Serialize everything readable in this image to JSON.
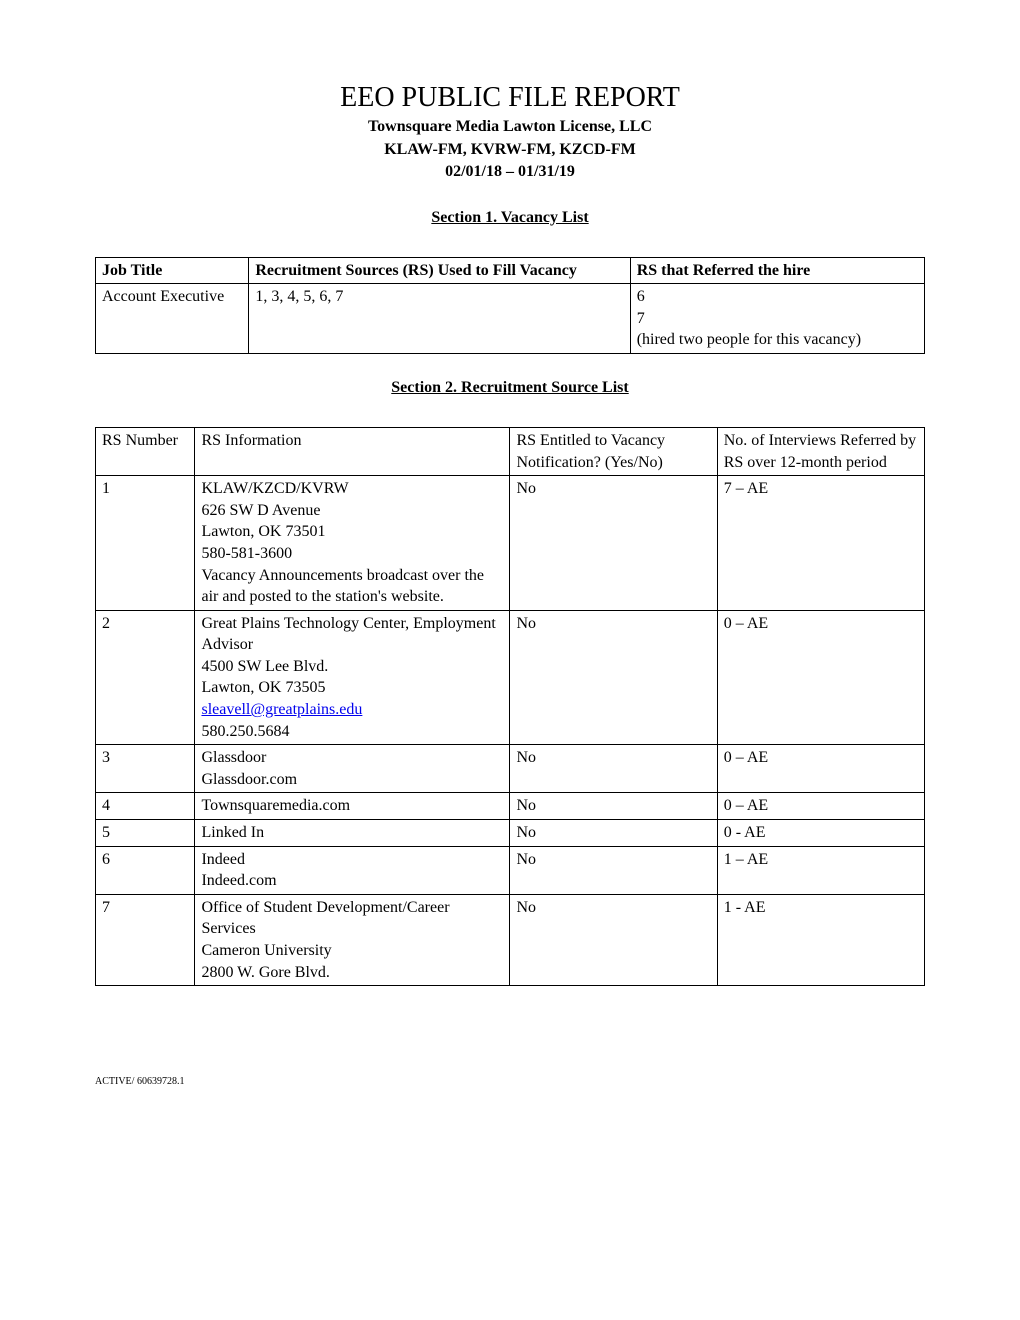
{
  "header": {
    "title": "EEO PUBLIC FILE REPORT",
    "company": "Townsquare Media Lawton License, LLC",
    "stations": "KLAW-FM, KVRW-FM, KZCD-FM",
    "date_range": "02/01/18 – 01/31/19"
  },
  "section1": {
    "heading": "Section 1. Vacancy List",
    "columns": {
      "job_title": "Job Title",
      "sources": "Recruitment Sources (RS) Used to Fill Vacancy",
      "referred": "RS that Referred the hire"
    },
    "rows": [
      {
        "job_title": "Account Executive",
        "sources": "1, 3, 4, 5, 6, 7",
        "referred_line1": "6",
        "referred_line2": "7",
        "referred_line3": "(hired two people for this vacancy)"
      }
    ]
  },
  "section2": {
    "heading": "Section 2. Recruitment Source List",
    "columns": {
      "rs_number": "RS Number",
      "rs_info": "RS Information",
      "entitled": "RS Entitled to Vacancy Notification? (Yes/No)",
      "interviews": "No. of Interviews Referred by RS over 12-month period"
    },
    "rows": [
      {
        "num": "1",
        "info_l1": "KLAW/KZCD/KVRW",
        "info_l2": "626 SW D Avenue",
        "info_l3": "Lawton, OK  73501",
        "info_l4": "580-581-3600",
        "info_l5": "Vacancy Announcements broadcast over the air and posted to the station's website.",
        "entitled": "No",
        "interviews": "7 – AE"
      },
      {
        "num": "2",
        "info_l1": "Great Plains Technology Center, Employment Advisor",
        "info_l2": "4500 SW Lee Blvd.",
        "info_l3": "Lawton, OK  73505",
        "info_email": "sleavell@greatplains.edu",
        "info_l5": "580.250.5684",
        "entitled": "No",
        "interviews": "0 – AE"
      },
      {
        "num": "3",
        "info_l1": "Glassdoor",
        "info_l2": "Glassdoor.com",
        "entitled": "No",
        "interviews": "0 – AE"
      },
      {
        "num": "4",
        "info_l1": "Townsquaremedia.com",
        "entitled": "No",
        "interviews": "0 – AE"
      },
      {
        "num": "5",
        "info_l1": "Linked In",
        "entitled": "No",
        "interviews": "0 - AE"
      },
      {
        "num": "6",
        "info_l1": "Indeed",
        "info_l2": "Indeed.com",
        "entitled": "No",
        "interviews": "1 – AE"
      },
      {
        "num": "7",
        "info_l1": "Office of  Student Development/Career Services",
        "info_l2": "Cameron University",
        "info_l3": "2800 W. Gore Blvd.",
        "entitled": "No",
        "interviews": "1 - AE"
      }
    ]
  },
  "footer": "ACTIVE/ 60639728.1"
}
